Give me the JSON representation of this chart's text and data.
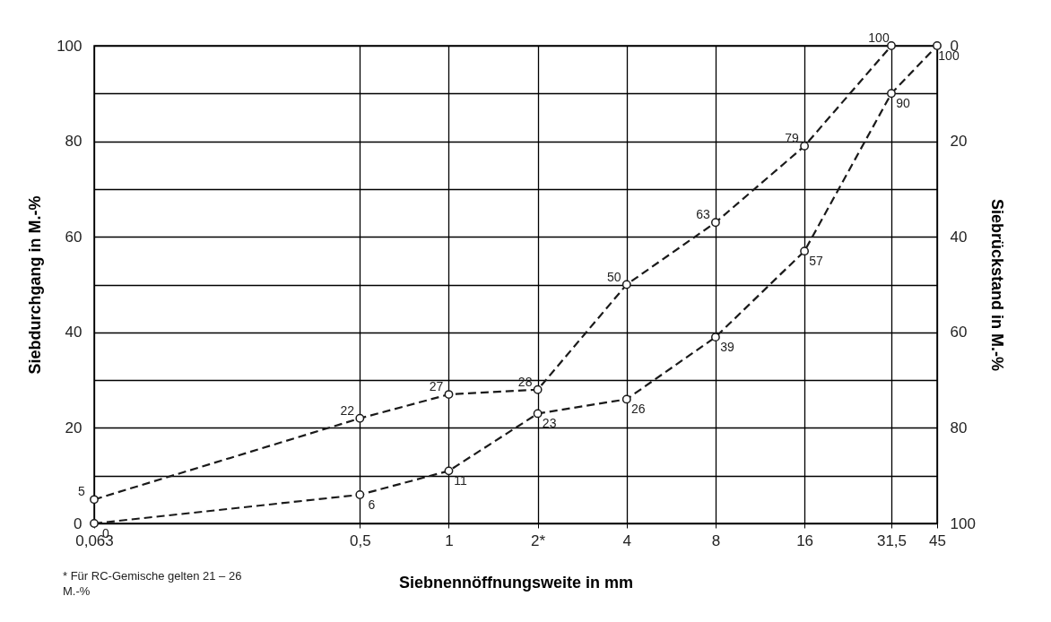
{
  "chart_data": {
    "type": "line",
    "xlabel": "Siebnennöffnungsweite in mm",
    "ylabel": "Siebdurchgang in M.-%",
    "y2label": "Siebrückstand in M.-%",
    "log": "x",
    "xlim": [
      0.063,
      45
    ],
    "xticks": [
      {
        "value": 0.063,
        "label": "0,063"
      },
      {
        "value": 0.5,
        "label": "0,5"
      },
      1,
      {
        "value": 2,
        "label": "2*"
      },
      4,
      8,
      16,
      {
        "value": 31.5,
        "label": "31,5"
      },
      45
    ],
    "ylim": [
      0,
      100
    ],
    "yticks": [
      0,
      {
        "value": 10,
        "label": null
      },
      20,
      {
        "value": 30,
        "label": null
      },
      40,
      {
        "value": 50,
        "label": null
      },
      60,
      {
        "value": 70,
        "label": null
      },
      80,
      {
        "value": 90,
        "label": null
      },
      100
    ],
    "y2lim": [
      100,
      0
    ],
    "y2ticks": [
      0,
      20,
      40,
      60,
      80,
      100
    ],
    "x": [
      0.063,
      0.5,
      1,
      2,
      4,
      8,
      16,
      31.5,
      45
    ],
    "series": [
      {
        "color": "#1a1a1a",
        "values": [
          5,
          22,
          27,
          28,
          50,
          63,
          79,
          100,
          null
        ]
      },
      {
        "color": "#1a1a1a",
        "values": [
          0,
          6,
          11,
          23,
          26,
          39,
          57,
          90,
          100
        ]
      }
    ],
    "grid": true,
    "marker": "circle",
    "line_style": "dashed",
    "data_labels": true,
    "annotations": [
      "* Für RC-Gemische gelten 21 – 26 M.-%"
    ]
  }
}
